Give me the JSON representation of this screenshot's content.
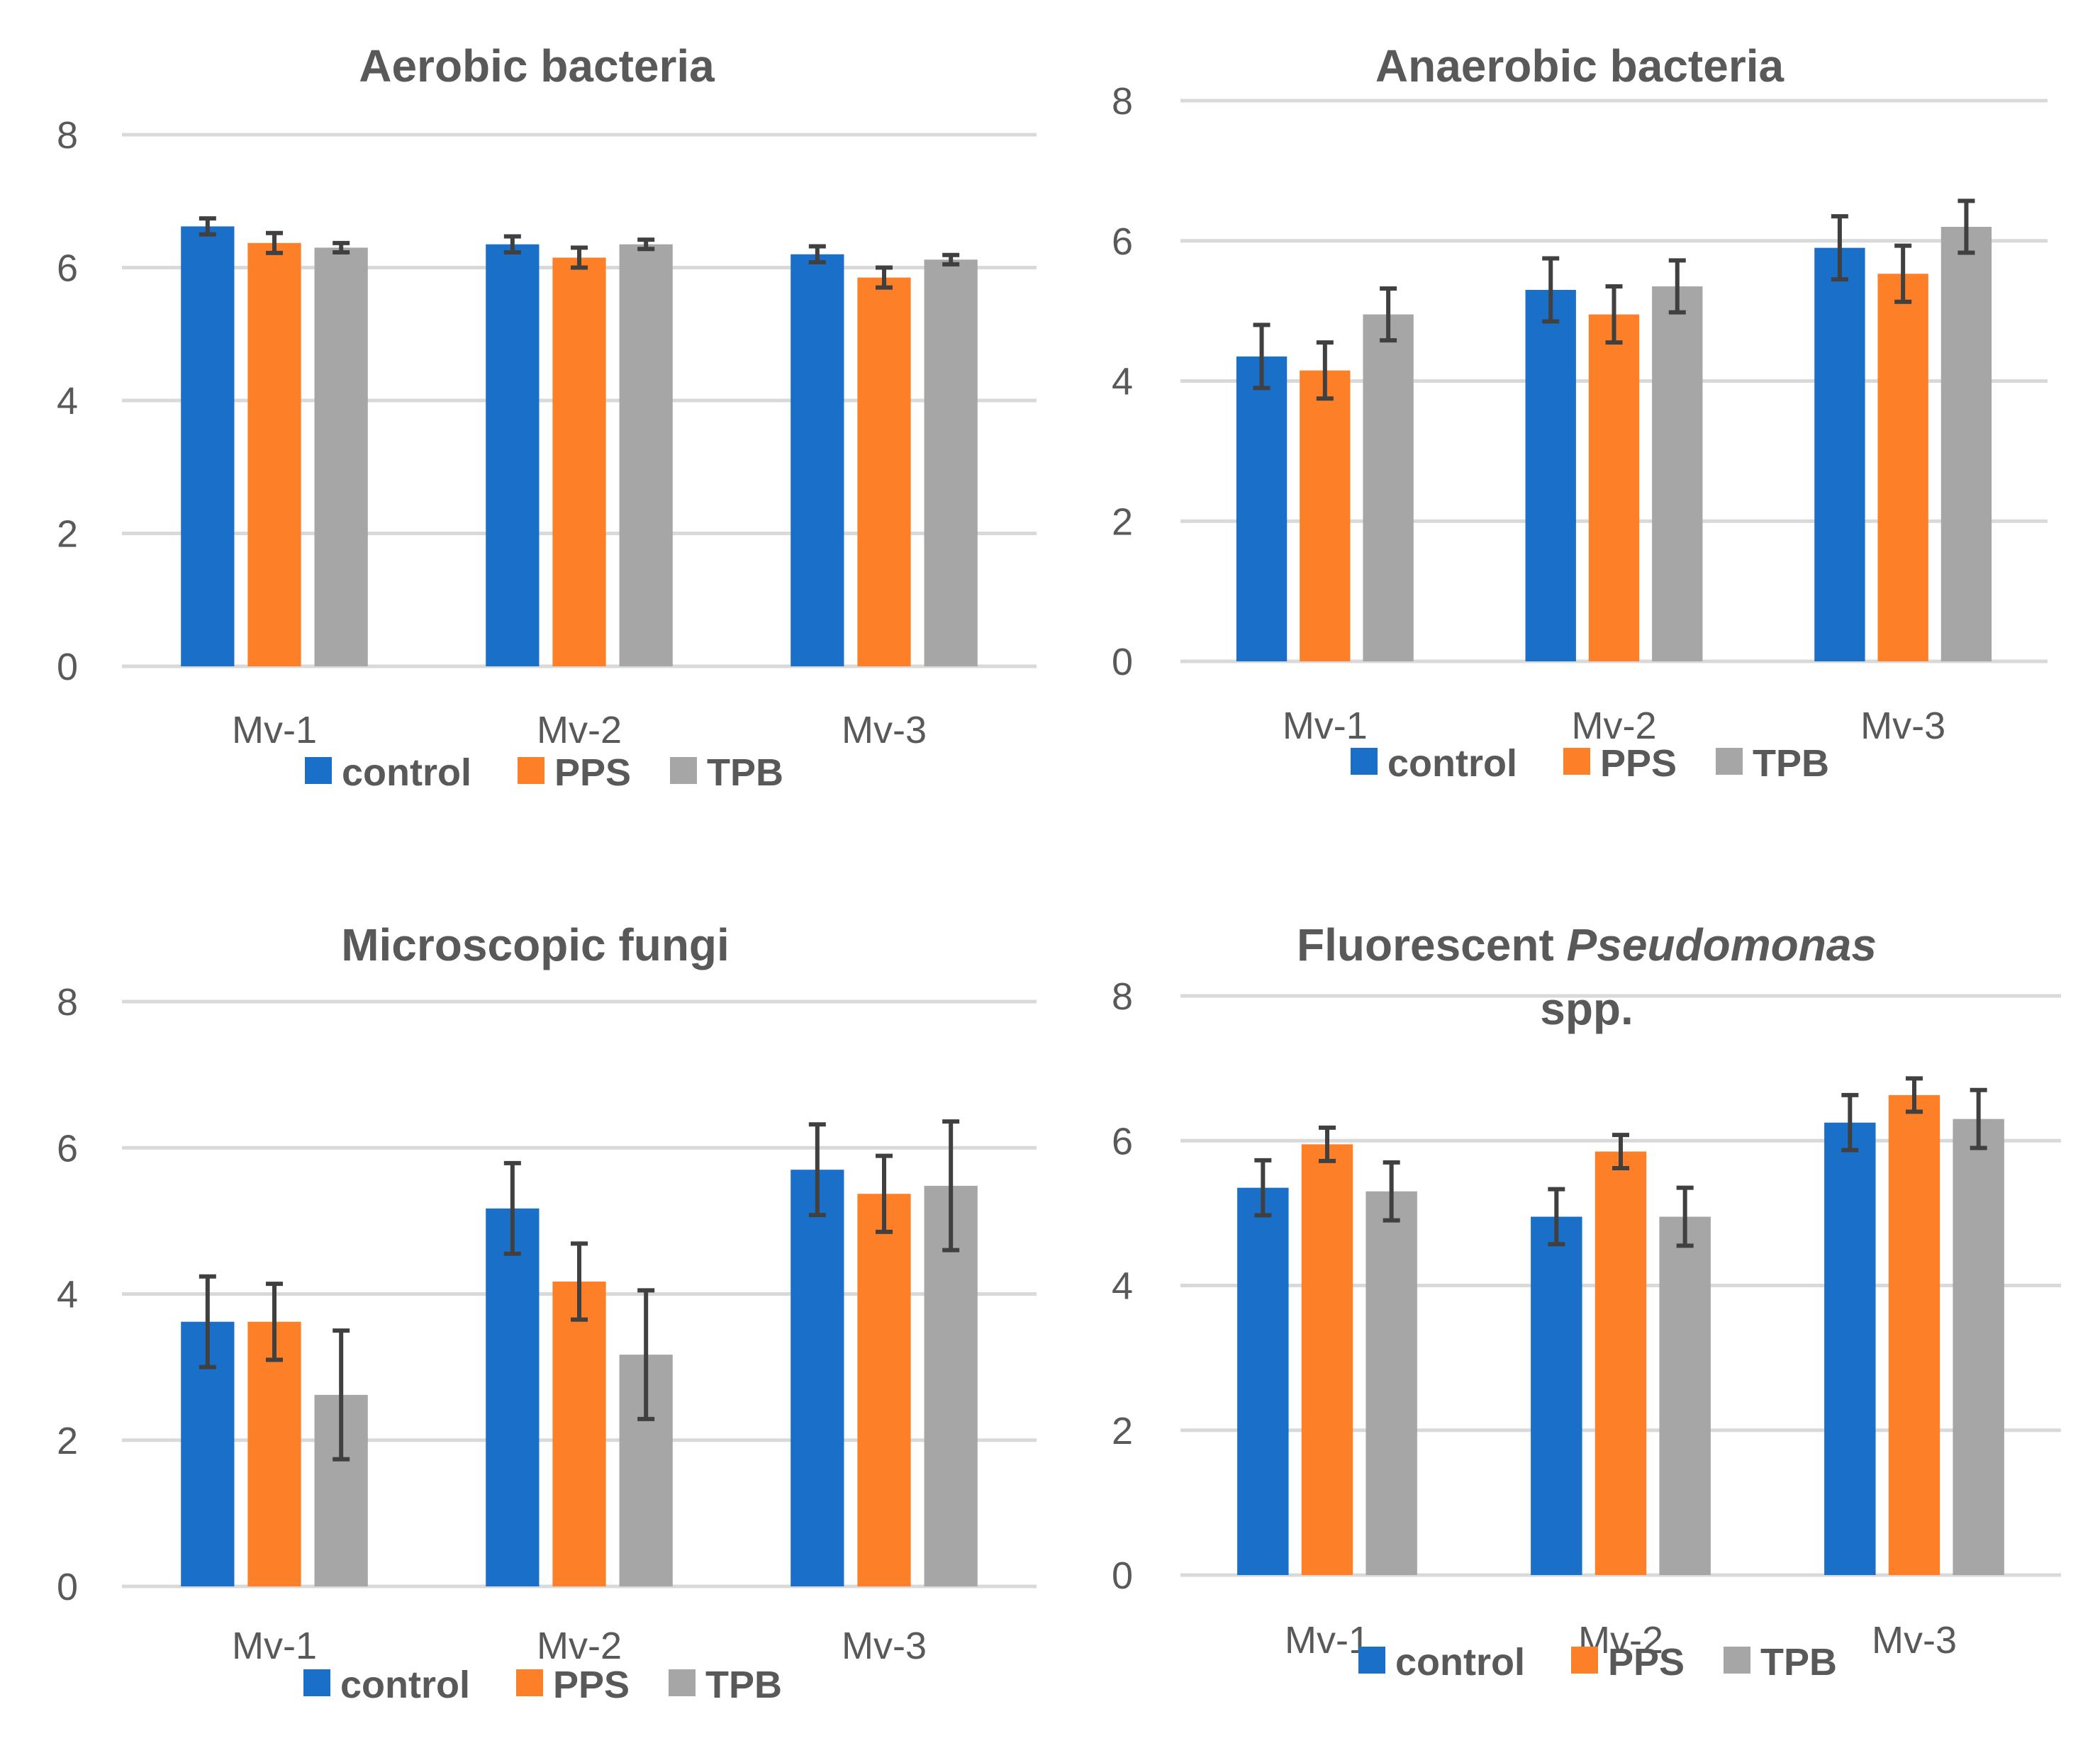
{
  "colors": {
    "control": "#1a70c8",
    "PPS": "#fd7f28",
    "TPB": "#a6a6a6"
  },
  "chart_data": [
    {
      "type": "bar",
      "title": "Aerobic bacteria",
      "title_parts": [
        {
          "text": "Aerobic bacteria",
          "italic": false
        }
      ],
      "categories": [
        "Mv-1",
        "Mv-2",
        "Mv-3"
      ],
      "series": [
        {
          "name": "control",
          "values": [
            6.62,
            6.35,
            6.2
          ],
          "errors": [
            0.12,
            0.12,
            0.12
          ]
        },
        {
          "name": "PPS",
          "values": [
            6.37,
            6.15,
            5.85
          ],
          "errors": [
            0.15,
            0.15,
            0.15
          ]
        },
        {
          "name": "TPB",
          "values": [
            6.3,
            6.35,
            6.12
          ],
          "errors": [
            0.07,
            0.07,
            0.07
          ]
        }
      ],
      "ylim": [
        0,
        8
      ],
      "yticks": [
        "0",
        "2",
        "4",
        "6",
        "8"
      ],
      "xlabel": "",
      "ylabel": "",
      "grid": true,
      "legend": "bottom"
    },
    {
      "type": "bar",
      "title": "Anaerobic bacteria",
      "title_parts": [
        {
          "text": "Anaerobic bacteria",
          "italic": false
        }
      ],
      "categories": [
        "Mv-1",
        "Mv-2",
        "Mv-3"
      ],
      "series": [
        {
          "name": "control",
          "values": [
            4.35,
            5.3,
            5.9
          ],
          "errors": [
            0.45,
            0.45,
            0.45
          ]
        },
        {
          "name": "PPS",
          "values": [
            4.15,
            4.95,
            5.53
          ],
          "errors": [
            0.4,
            0.4,
            0.4
          ]
        },
        {
          "name": "TPB",
          "values": [
            4.95,
            5.35,
            6.2
          ],
          "errors": [
            0.37,
            0.37,
            0.37
          ]
        }
      ],
      "ylim": [
        0,
        8
      ],
      "yticks": [
        "0",
        "2",
        "4",
        "6",
        "8"
      ],
      "xlabel": "",
      "ylabel": "",
      "grid": true,
      "legend": "bottom"
    },
    {
      "type": "bar",
      "title": "Microscopic fungi",
      "title_parts": [
        {
          "text": "Microscopic fungi",
          "italic": false
        }
      ],
      "categories": [
        "Mv-1",
        "Mv-2",
        "Mv-3"
      ],
      "series": [
        {
          "name": "control",
          "values": [
            3.62,
            5.17,
            5.7
          ],
          "errors": [
            0.62,
            0.62,
            0.62
          ]
        },
        {
          "name": "PPS",
          "values": [
            3.62,
            4.17,
            5.37
          ],
          "errors": [
            0.52,
            0.52,
            0.52
          ]
        },
        {
          "name": "TPB",
          "values": [
            2.62,
            3.17,
            5.48
          ],
          "errors": [
            0.88,
            0.88,
            0.88
          ]
        }
      ],
      "ylim": [
        0,
        8
      ],
      "yticks": [
        "0",
        "2",
        "4",
        "6",
        "8"
      ],
      "xlabel": "",
      "ylabel": "",
      "grid": true,
      "legend": "bottom"
    },
    {
      "type": "bar",
      "title": "Fluorescent Pseudomonas spp.",
      "title_parts": [
        {
          "text": "Fluorescent ",
          "italic": false
        },
        {
          "text": "Pseudomonas",
          "italic": true
        },
        {
          "text": "spp.",
          "italic": false,
          "line": 2
        }
      ],
      "categories": [
        "Mv-1",
        "Mv-2",
        "Mv-3"
      ],
      "series": [
        {
          "name": "control",
          "values": [
            5.35,
            4.95,
            6.25
          ],
          "errors": [
            0.38,
            0.38,
            0.38
          ]
        },
        {
          "name": "PPS",
          "values": [
            5.95,
            5.85,
            6.63
          ],
          "errors": [
            0.23,
            0.23,
            0.23
          ]
        },
        {
          "name": "TPB",
          "values": [
            5.3,
            4.95,
            6.3
          ],
          "errors": [
            0.4,
            0.4,
            0.4
          ]
        }
      ],
      "ylim": [
        0,
        8
      ],
      "yticks": [
        "0",
        "2",
        "4",
        "6",
        "8"
      ],
      "xlabel": "",
      "ylabel": "",
      "grid": true,
      "legend": "bottom"
    }
  ]
}
